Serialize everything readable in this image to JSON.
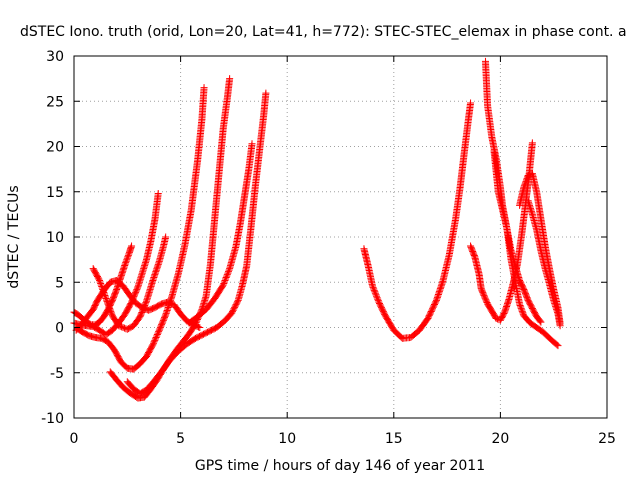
{
  "chart_data": {
    "type": "scatter",
    "title": "dSTEC Iono. truth (orid, Lon=20, Lat=41, h=772): STEC-STEC_elemax in phase cont. a",
    "xlabel": "GPS time / hours of day 146 of year 2011",
    "ylabel": "dSTEC  / TECUs",
    "xlim": [
      0,
      25
    ],
    "ylim": [
      -10,
      30
    ],
    "x_ticks": [
      0,
      5,
      10,
      15,
      20,
      25
    ],
    "y_ticks": [
      -10,
      -5,
      0,
      5,
      10,
      15,
      20,
      25,
      30
    ],
    "x_tick_labels": [
      "0",
      "5",
      "10",
      "15",
      "20",
      "25"
    ],
    "y_tick_labels": [
      "-10",
      "-5",
      "0",
      "5",
      "10",
      "15",
      "20",
      "25",
      "30"
    ],
    "grid": true,
    "legend": "none",
    "marker": "plus",
    "color": "#ff0000",
    "series": [
      {
        "points": [
          [
            0.0,
            1.7
          ],
          [
            0.2,
            1.4
          ],
          [
            0.4,
            1.0
          ],
          [
            0.6,
            0.6
          ],
          [
            0.8,
            0.3
          ],
          [
            1.0,
            0.3
          ],
          [
            1.2,
            0.6
          ],
          [
            1.4,
            1.2
          ],
          [
            1.6,
            2.0
          ],
          [
            1.8,
            3.0
          ],
          [
            2.0,
            4.2
          ],
          [
            2.2,
            5.6
          ],
          [
            2.4,
            7.0
          ],
          [
            2.6,
            8.3
          ],
          [
            2.7,
            9.0
          ]
        ]
      },
      {
        "points": [
          [
            0.0,
            0.5
          ],
          [
            0.3,
            0.3
          ],
          [
            0.6,
            0.2
          ],
          [
            0.9,
            0.1
          ],
          [
            1.2,
            -0.3
          ],
          [
            1.5,
            -0.8
          ],
          [
            1.8,
            -0.3
          ],
          [
            2.1,
            0.5
          ],
          [
            2.4,
            1.5
          ],
          [
            2.7,
            2.8
          ],
          [
            3.0,
            4.5
          ],
          [
            3.2,
            6.0
          ],
          [
            3.4,
            7.5
          ],
          [
            3.6,
            9.5
          ],
          [
            3.8,
            12.0
          ],
          [
            3.95,
            14.8
          ]
        ]
      },
      {
        "points": [
          [
            0.1,
            -0.3
          ],
          [
            0.4,
            0.5
          ],
          [
            0.7,
            1.4
          ],
          [
            0.9,
            2.0
          ],
          [
            1.1,
            3.0
          ],
          [
            1.4,
            4.1
          ],
          [
            1.7,
            5.0
          ],
          [
            2.0,
            5.2
          ],
          [
            2.3,
            4.6
          ],
          [
            2.6,
            3.6
          ],
          [
            2.9,
            2.7
          ],
          [
            3.2,
            2.2
          ],
          [
            3.5,
            1.9
          ],
          [
            3.8,
            2.2
          ],
          [
            4.1,
            2.6
          ],
          [
            4.4,
            2.8
          ],
          [
            4.7,
            2.5
          ],
          [
            5.0,
            1.5
          ],
          [
            5.3,
            0.7
          ],
          [
            5.6,
            0.3
          ],
          [
            5.9,
            0.0
          ]
        ]
      },
      {
        "points": [
          [
            0.9,
            6.5
          ],
          [
            1.2,
            5.2
          ],
          [
            1.5,
            3.2
          ],
          [
            1.8,
            1.3
          ],
          [
            2.1,
            0.2
          ],
          [
            2.5,
            -0.2
          ],
          [
            2.8,
            0.2
          ],
          [
            3.1,
            1.2
          ],
          [
            3.4,
            2.9
          ],
          [
            3.7,
            5.2
          ],
          [
            4.0,
            7.3
          ],
          [
            4.2,
            9.0
          ],
          [
            4.3,
            10.0
          ]
        ]
      },
      {
        "points": [
          [
            0.2,
            -0.2
          ],
          [
            0.4,
            -0.5
          ],
          [
            0.7,
            -0.9
          ],
          [
            1.0,
            -1.1
          ],
          [
            1.3,
            -1.2
          ],
          [
            1.6,
            -1.6
          ],
          [
            1.9,
            -2.5
          ],
          [
            2.2,
            -3.8
          ],
          [
            2.5,
            -4.5
          ],
          [
            2.8,
            -4.6
          ],
          [
            3.1,
            -4.0
          ],
          [
            3.4,
            -3.2
          ],
          [
            3.7,
            -1.9
          ],
          [
            4.0,
            -0.3
          ],
          [
            4.3,
            1.4
          ],
          [
            4.6,
            3.5
          ],
          [
            4.9,
            6.0
          ],
          [
            5.2,
            9.1
          ],
          [
            5.5,
            13.0
          ],
          [
            5.8,
            18.5
          ],
          [
            6.0,
            23.0
          ],
          [
            6.1,
            26.5
          ]
        ]
      },
      {
        "points": [
          [
            1.7,
            -4.9
          ],
          [
            2.0,
            -5.8
          ],
          [
            2.3,
            -6.6
          ],
          [
            2.6,
            -7.2
          ],
          [
            3.0,
            -7.8
          ],
          [
            3.3,
            -7.7
          ],
          [
            3.6,
            -6.8
          ],
          [
            3.9,
            -5.8
          ],
          [
            4.2,
            -4.6
          ],
          [
            4.5,
            -3.5
          ],
          [
            4.8,
            -2.5
          ],
          [
            5.1,
            -1.6
          ],
          [
            5.4,
            -0.7
          ],
          [
            5.7,
            0.4
          ],
          [
            6.0,
            2.0
          ],
          [
            6.2,
            3.5
          ],
          [
            6.4,
            7.0
          ],
          [
            6.6,
            12.0
          ],
          [
            6.8,
            17.0
          ],
          [
            7.0,
            22.0
          ],
          [
            7.2,
            25.5
          ],
          [
            7.3,
            27.5
          ]
        ]
      },
      {
        "points": [
          [
            2.5,
            -6.0
          ],
          [
            2.8,
            -6.8
          ],
          [
            3.1,
            -7.3
          ],
          [
            3.4,
            -6.9
          ],
          [
            3.7,
            -6.1
          ],
          [
            4.1,
            -4.9
          ],
          [
            4.5,
            -3.6
          ],
          [
            4.9,
            -2.6
          ],
          [
            5.3,
            -1.8
          ],
          [
            5.7,
            -1.2
          ],
          [
            6.2,
            -0.6
          ],
          [
            6.7,
            0.0
          ],
          [
            7.1,
            0.8
          ],
          [
            7.4,
            1.6
          ],
          [
            7.7,
            3.0
          ],
          [
            7.9,
            4.7
          ],
          [
            8.1,
            6.8
          ],
          [
            8.3,
            11.0
          ],
          [
            8.5,
            15.5
          ],
          [
            8.7,
            19.5
          ],
          [
            8.9,
            23.5
          ],
          [
            9.0,
            25.9
          ]
        ]
      },
      {
        "points": [
          [
            5.4,
            0.5
          ],
          [
            5.8,
            1.2
          ],
          [
            6.2,
            2.0
          ],
          [
            6.6,
            3.2
          ],
          [
            7.0,
            4.7
          ],
          [
            7.3,
            6.5
          ],
          [
            7.6,
            9.0
          ],
          [
            7.8,
            11.5
          ],
          [
            8.0,
            14.5
          ],
          [
            8.2,
            17.5
          ],
          [
            8.35,
            20.3
          ]
        ]
      },
      {
        "points": [
          [
            13.6,
            8.7
          ],
          [
            13.8,
            6.8
          ],
          [
            14.0,
            4.6
          ],
          [
            14.3,
            2.8
          ],
          [
            14.6,
            1.3
          ],
          [
            15.0,
            -0.3
          ],
          [
            15.4,
            -1.2
          ],
          [
            15.8,
            -1.1
          ],
          [
            16.2,
            -0.3
          ],
          [
            16.6,
            1.0
          ],
          [
            17.0,
            3.0
          ],
          [
            17.3,
            5.1
          ],
          [
            17.6,
            8.0
          ],
          [
            17.9,
            12.0
          ],
          [
            18.1,
            15.3
          ],
          [
            18.3,
            19.2
          ],
          [
            18.5,
            23.0
          ],
          [
            18.6,
            24.8
          ]
        ]
      },
      {
        "points": [
          [
            18.6,
            9.0
          ],
          [
            18.8,
            7.8
          ],
          [
            19.0,
            5.9
          ],
          [
            19.1,
            4.3
          ],
          [
            19.2,
            3.7
          ],
          [
            19.4,
            2.6
          ],
          [
            19.6,
            1.8
          ],
          [
            19.8,
            1.0
          ],
          [
            20.0,
            0.8
          ],
          [
            20.2,
            1.7
          ],
          [
            20.4,
            3.1
          ],
          [
            20.6,
            4.9
          ],
          [
            20.8,
            7.0
          ],
          [
            21.0,
            10.3
          ],
          [
            21.2,
            14.0
          ],
          [
            21.35,
            17.0
          ],
          [
            21.5,
            20.4
          ]
        ]
      },
      {
        "points": [
          [
            19.3,
            29.4
          ],
          [
            19.4,
            24.5
          ],
          [
            19.6,
            21.0
          ],
          [
            19.8,
            18.7
          ],
          [
            20.0,
            15.5
          ],
          [
            20.1,
            13.5
          ],
          [
            20.3,
            11.0
          ],
          [
            20.5,
            7.5
          ],
          [
            20.7,
            5.0
          ],
          [
            20.9,
            2.6
          ],
          [
            21.1,
            1.3
          ],
          [
            21.4,
            0.5
          ],
          [
            21.7,
            0.0
          ],
          [
            22.0,
            -0.5
          ],
          [
            22.4,
            -1.4
          ],
          [
            22.7,
            -2.0
          ]
        ]
      },
      {
        "points": [
          [
            19.7,
            19.5
          ],
          [
            19.9,
            15.0
          ],
          [
            20.1,
            13.0
          ],
          [
            20.3,
            11.0
          ],
          [
            20.5,
            8.5
          ],
          [
            20.7,
            6.8
          ],
          [
            20.9,
            5.2
          ],
          [
            21.1,
            4.2
          ],
          [
            21.3,
            3.0
          ],
          [
            21.5,
            2.1
          ],
          [
            21.7,
            1.2
          ],
          [
            21.9,
            0.6
          ]
        ]
      },
      {
        "points": [
          [
            20.9,
            13.5
          ],
          [
            21.1,
            15.5
          ],
          [
            21.3,
            16.8
          ],
          [
            21.5,
            17.0
          ],
          [
            21.7,
            15.0
          ],
          [
            21.9,
            12.0
          ],
          [
            22.1,
            9.0
          ],
          [
            22.3,
            6.5
          ],
          [
            22.5,
            4.2
          ],
          [
            22.7,
            2.2
          ],
          [
            22.8,
            0.5
          ]
        ]
      },
      {
        "points": [
          [
            21.3,
            14.0
          ],
          [
            21.5,
            12.5
          ],
          [
            21.7,
            10.8
          ],
          [
            21.9,
            8.5
          ],
          [
            22.1,
            6.5
          ],
          [
            22.3,
            4.8
          ],
          [
            22.5,
            3.0
          ],
          [
            22.7,
            1.5
          ],
          [
            22.8,
            0.2
          ]
        ]
      }
    ]
  }
}
